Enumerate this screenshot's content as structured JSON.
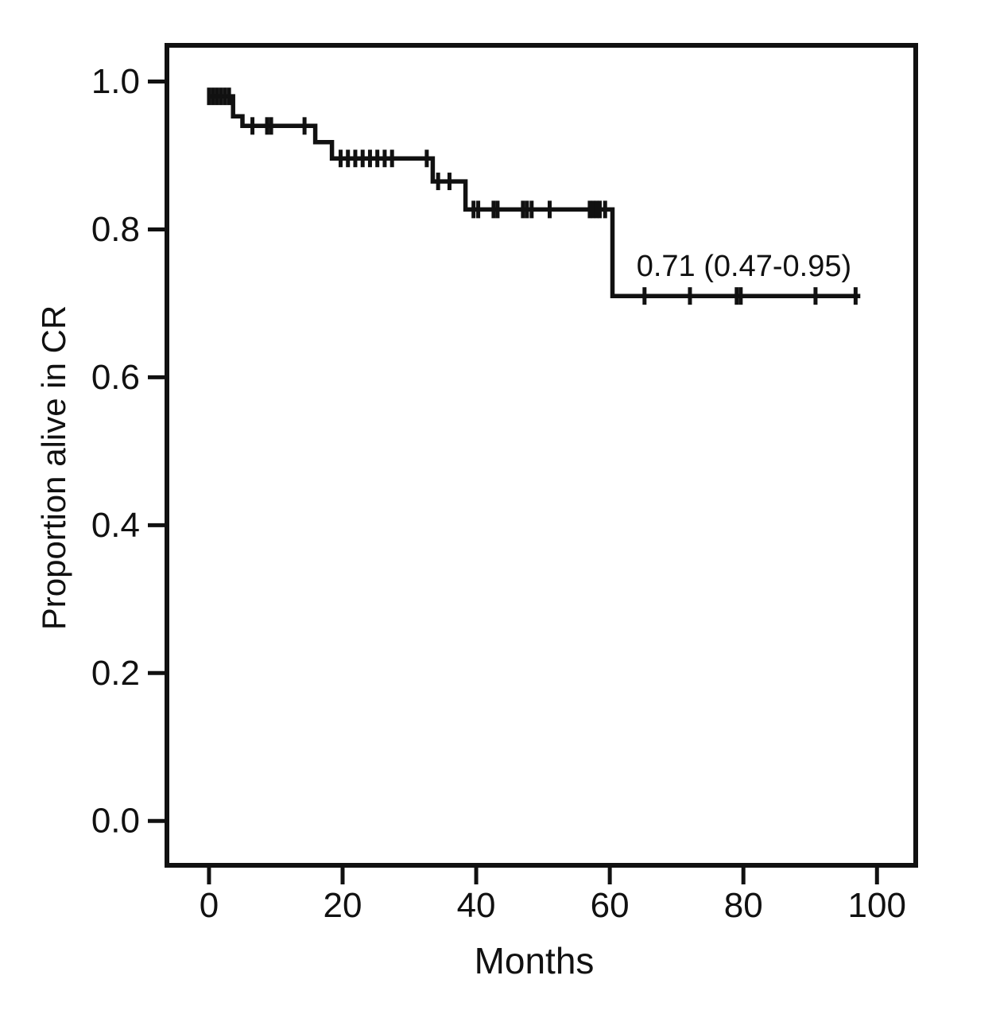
{
  "chart_data": {
    "type": "line",
    "subtype": "kaplan_meier_step",
    "title": "",
    "xlabel": "Months",
    "ylabel": "Proportion alive in CR",
    "xlim": [
      -6.3,
      105.8
    ],
    "ylim": [
      -0.06,
      1.049
    ],
    "xticks": [
      0,
      20,
      40,
      60,
      80,
      100
    ],
    "yticks": [
      0.0,
      0.2,
      0.4,
      0.6,
      0.8,
      1.0
    ],
    "grid": false,
    "legend": "none",
    "line_color": "#111111",
    "background": "#ffffff",
    "annotation": {
      "text": "0.71 (0.47-0.95)",
      "x": 64,
      "y": 0.75
    },
    "series": [
      {
        "name": "Proportion alive in CR",
        "steps": [
          [
            0,
            0.98
          ],
          [
            3.6,
            0.953
          ],
          [
            5.0,
            0.94
          ],
          [
            15.9,
            0.918
          ],
          [
            18.4,
            0.896
          ],
          [
            33.5,
            0.865
          ],
          [
            38.4,
            0.827
          ],
          [
            60.4,
            0.71
          ]
        ],
        "end_time": 97.5,
        "final_estimate": "0.71 (0.47-0.95)",
        "censor_marks": [
          [
            0.0,
            0.98
          ],
          [
            0.6,
            0.98
          ],
          [
            1.2,
            0.98
          ],
          [
            1.8,
            0.98
          ],
          [
            2.4,
            0.98
          ],
          [
            3.0,
            0.98
          ],
          [
            6.5,
            0.94
          ],
          [
            8.7,
            0.94
          ],
          [
            9.3,
            0.94
          ],
          [
            14.3,
            0.94
          ],
          [
            19.7,
            0.896
          ],
          [
            20.8,
            0.896
          ],
          [
            21.9,
            0.896
          ],
          [
            23.0,
            0.896
          ],
          [
            24.1,
            0.896
          ],
          [
            25.2,
            0.896
          ],
          [
            26.3,
            0.896
          ],
          [
            27.4,
            0.896
          ],
          [
            32.6,
            0.896
          ],
          [
            34.3,
            0.865
          ],
          [
            36.0,
            0.865
          ],
          [
            39.6,
            0.827
          ],
          [
            40.3,
            0.827
          ],
          [
            42.6,
            0.827
          ],
          [
            43.2,
            0.827
          ],
          [
            47.0,
            0.827
          ],
          [
            47.6,
            0.827
          ],
          [
            48.3,
            0.827
          ],
          [
            51.0,
            0.827
          ],
          [
            57.0,
            0.827
          ],
          [
            57.5,
            0.827
          ],
          [
            58.0,
            0.827
          ],
          [
            58.5,
            0.827
          ],
          [
            59.3,
            0.827
          ],
          [
            65.2,
            0.71
          ],
          [
            72.0,
            0.71
          ],
          [
            79.0,
            0.71
          ],
          [
            79.6,
            0.71
          ],
          [
            90.8,
            0.71
          ],
          [
            96.8,
            0.71
          ]
        ]
      }
    ]
  }
}
